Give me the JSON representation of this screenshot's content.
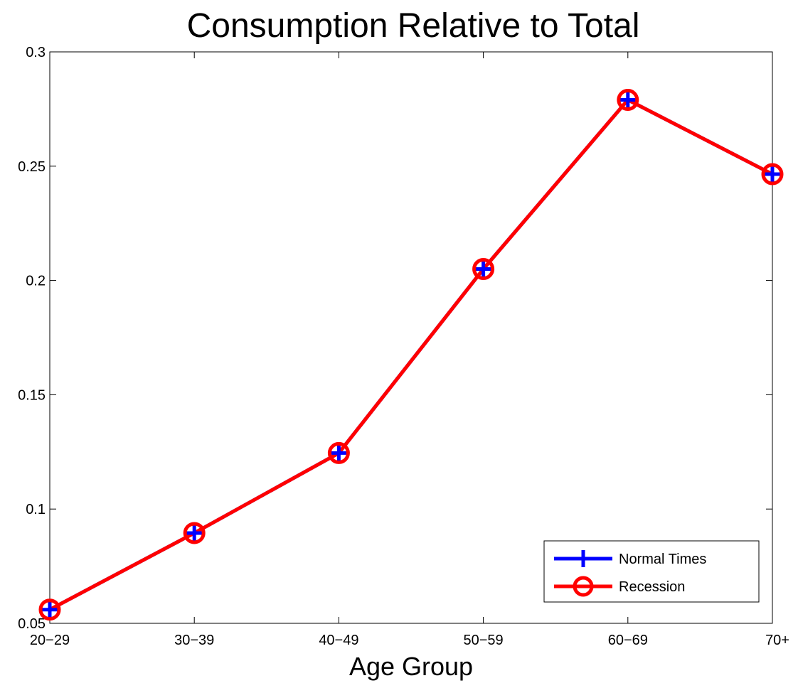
{
  "chart_data": {
    "type": "line",
    "title": "Consumption Relative to Total",
    "xlabel": "Age Group",
    "ylabel": "",
    "categories": [
      "20−29",
      "30−39",
      "40−49",
      "50−59",
      "60−69",
      "70+"
    ],
    "ylim": [
      0.05,
      0.3
    ],
    "yticks": [
      "0.05",
      "0.1",
      "0.15",
      "0.2",
      "0.25",
      "0.3"
    ],
    "grid": false,
    "legend_position": "bottom-right",
    "series": [
      {
        "name": "Normal Times",
        "values": [
          0.056,
          0.0895,
          0.1245,
          0.205,
          0.279,
          0.2465
        ],
        "color": "#0000ff",
        "marker": "plus"
      },
      {
        "name": "Recession",
        "values": [
          0.056,
          0.0895,
          0.1245,
          0.205,
          0.279,
          0.2465
        ],
        "color": "#ff0000",
        "marker": "circle"
      }
    ]
  }
}
